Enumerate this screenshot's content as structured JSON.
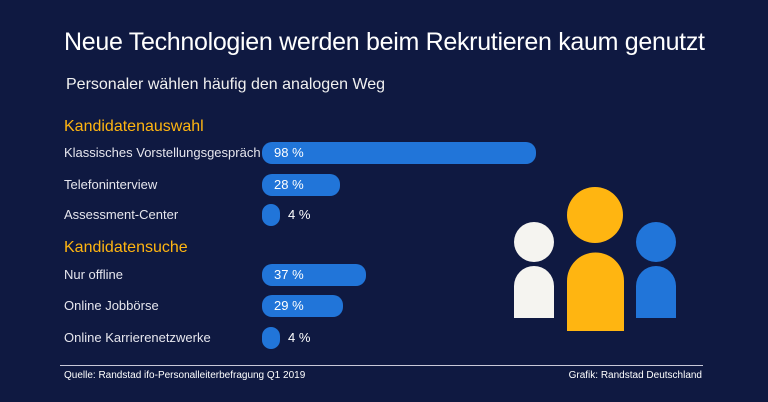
{
  "title": "Neue Technologien werden beim Rekrutieren kaum genutzt",
  "subtitle": "Personaler wählen häufig den analogen Weg",
  "colors": {
    "background": "#0f1941",
    "bar": "#2175d9",
    "section": "#ffb511",
    "figure_left": "#f5f4f0",
    "figure_center": "#ffb511",
    "figure_right": "#2175d9"
  },
  "chart_data": {
    "type": "bar",
    "orientation": "horizontal",
    "unit": "%",
    "groups": [
      {
        "name": "Kandidatenauswahl",
        "categories": [
          "Klassisches Vorstellungsgespräch",
          "Telefoninterview",
          "Assessment-Center"
        ],
        "values": [
          98,
          28,
          4
        ],
        "labels": [
          "98 %",
          "28 %",
          "4 %"
        ]
      },
      {
        "name": "Kandidatensuche",
        "categories": [
          "Nur offline",
          "Online Jobbörse",
          "Online Karrierenetzwerke"
        ],
        "values": [
          37,
          29,
          4
        ],
        "labels": [
          "37 %",
          "29 %",
          "4 %"
        ]
      }
    ]
  },
  "footer": {
    "source": "Quelle: Randstad ifo-Personalleiterbefragung Q1 2019",
    "credit": "Grafik: Randstad Deutschland"
  },
  "illustration": {
    "icon": "people-group-icon"
  }
}
